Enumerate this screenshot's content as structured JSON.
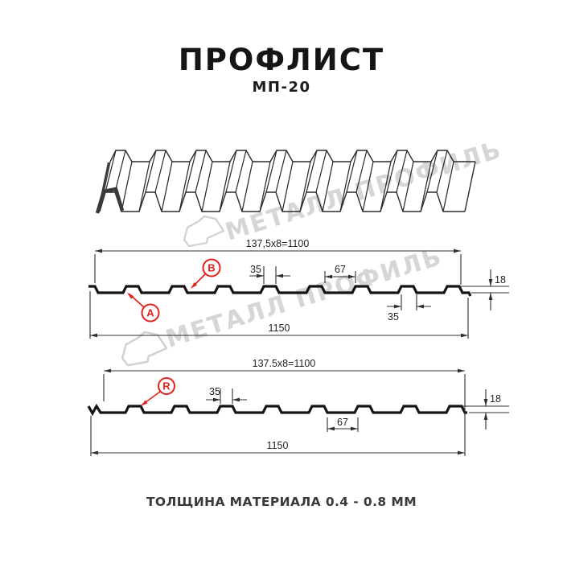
{
  "page": {
    "title": "ПРОФЛИСТ",
    "subtitle": "МП-20",
    "footer": "ТОЛЩИНА МАТЕРИАЛА 0.4 - 0.8 ММ"
  },
  "watermark": {
    "brand": "МЕТАЛЛ ПРОФИЛЬ"
  },
  "colors": {
    "accent_red": "#e3211c",
    "line_black": "#141414",
    "dim_gray": "#2f2f2f",
    "watermark_gray": "#d6d6d6"
  },
  "profile_top": {
    "pitch_formula": "137,5x8=1100",
    "rib_top_width": "35",
    "pan_width": "67",
    "height": "18",
    "rib_bottom_width": "35",
    "overall_width": "1150",
    "label_a": "A",
    "label_b": "B"
  },
  "profile_bottom": {
    "pitch_formula": "137.5x8=1100",
    "rib_top_width": "35",
    "pan_width": "67",
    "height": "18",
    "overall_width": "1150",
    "label_r": "R"
  }
}
